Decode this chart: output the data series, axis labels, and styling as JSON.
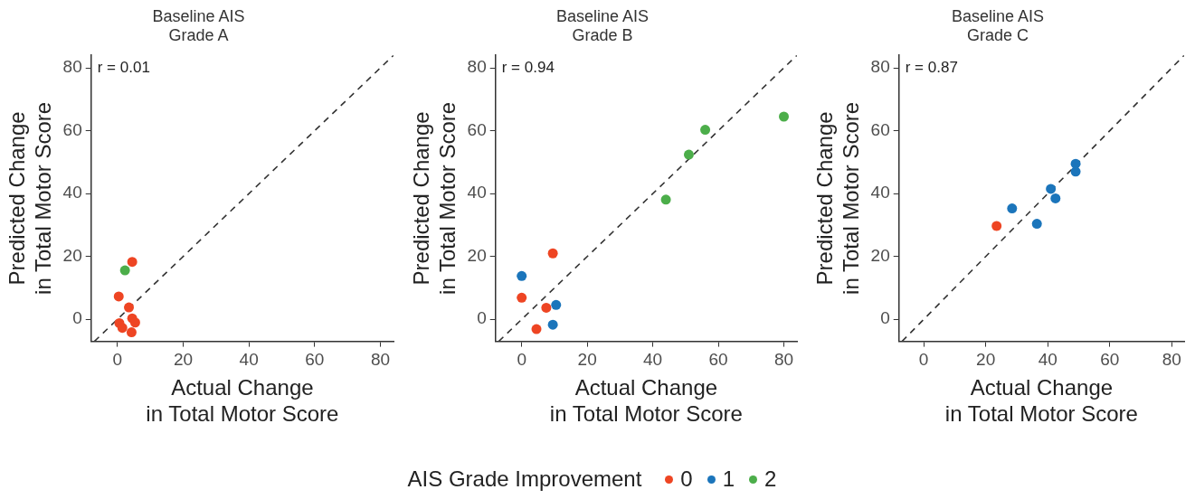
{
  "chart_data": [
    {
      "type": "scatter",
      "title": "Baseline AIS\nGrade A",
      "xlabel": "Actual Change\nin Total Motor Score",
      "ylabel": "Predicted Change\nin Total Motor Score",
      "xlim": [
        -8,
        84
      ],
      "ylim": [
        -7,
        84
      ],
      "xticks": [
        0,
        20,
        40,
        60,
        80
      ],
      "yticks": [
        0,
        20,
        40,
        60,
        80
      ],
      "marker": "circle",
      "annotations": [
        "r = 0.01"
      ],
      "series": [
        {
          "color": "#ee4523",
          "x": [
            4.5,
            0.4,
            3.5,
            4.5,
            5.4,
            0.6,
            1.5,
            4.3
          ],
          "values": [
            18.3,
            7.3,
            3.8,
            0.3,
            -1,
            -1.2,
            -2.7,
            -4.1
          ]
        },
        {
          "color": "#4cae4a",
          "x": [
            2.3
          ],
          "values": [
            15.6
          ]
        },
        {
          "type": "line",
          "color": "#333333",
          "line_style": "dashed",
          "marker": "none",
          "x": [
            -7,
            84
          ],
          "values": [
            -7,
            84
          ]
        }
      ]
    },
    {
      "type": "scatter",
      "title": "Baseline AIS\nGrade B",
      "xlabel": "Actual Change\nin Total Motor Score",
      "ylabel": "Predicted Change\nin Total Motor Score",
      "xlim": [
        -8,
        84
      ],
      "ylim": [
        -7,
        84
      ],
      "xticks": [
        0,
        20,
        40,
        60,
        80
      ],
      "yticks": [
        0,
        20,
        40,
        60,
        80
      ],
      "marker": "circle",
      "legend": "bottom",
      "legend_title": "AIS Grade Improvement",
      "annotations": [
        "r = 0.94"
      ],
      "series": [
        {
          "name": "0",
          "color": "#ee4523",
          "x": [
            9.5,
            0,
            7.5,
            4.5
          ],
          "values": [
            21,
            6.9,
            3.7,
            -3.1
          ]
        },
        {
          "name": "1",
          "color": "#1b75bb",
          "x": [
            0,
            10.5,
            9.5
          ],
          "values": [
            13.8,
            4.6,
            -1.7
          ]
        },
        {
          "name": "2",
          "color": "#4cae4a",
          "x": [
            80,
            56,
            51,
            44
          ],
          "values": [
            64.5,
            60.3,
            52.4,
            38.1
          ]
        },
        {
          "type": "line",
          "color": "#333333",
          "line_style": "dashed",
          "marker": "none",
          "x": [
            -7,
            84
          ],
          "values": [
            -7,
            84
          ]
        }
      ]
    },
    {
      "type": "scatter",
      "title": "Baseline AIS\nGrade C",
      "xlabel": "Actual Change\nin Total Motor Score",
      "ylabel": "Predicted Change\nin Total Motor Score",
      "xlim": [
        -8,
        84
      ],
      "ylim": [
        -7,
        84
      ],
      "xticks": [
        0,
        20,
        40,
        60,
        80
      ],
      "yticks": [
        0,
        20,
        40,
        60,
        80
      ],
      "marker": "circle",
      "annotations": [
        "r = 0.87"
      ],
      "series": [
        {
          "color": "#ee4523",
          "x": [
            23.5
          ],
          "values": [
            29.7
          ]
        },
        {
          "color": "#1b75bb",
          "x": [
            49,
            49,
            41,
            42.5,
            28.5,
            36.5
          ],
          "values": [
            49.5,
            47,
            41.5,
            38.5,
            35.3,
            30.4
          ]
        },
        {
          "type": "line",
          "color": "#333333",
          "line_style": "dashed",
          "marker": "none",
          "x": [
            -7,
            84
          ],
          "values": [
            -7,
            84
          ]
        }
      ]
    }
  ]
}
